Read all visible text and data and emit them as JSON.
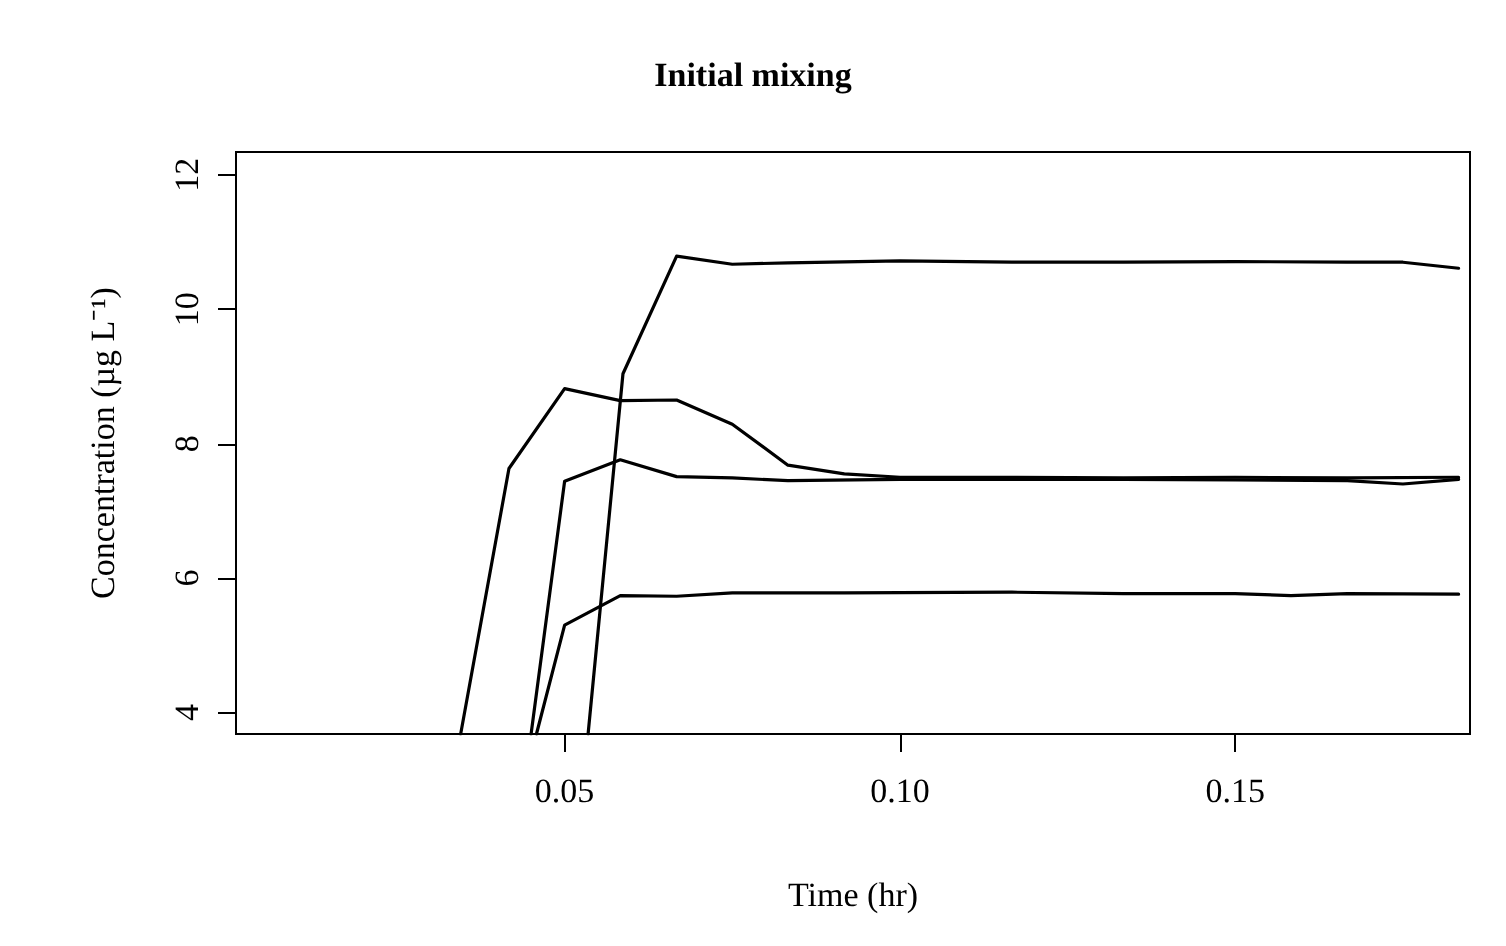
{
  "chart_data": {
    "type": "line",
    "title": "Initial mixing",
    "xlabel": "Time (hr)",
    "ylabel": "Concentration (µg L⁻¹)",
    "xlim": [
      0.001,
      0.185
    ],
    "ylim": [
      3.68,
      12.34
    ],
    "xticks": [
      {
        "value": 0.05,
        "label": "0.05"
      },
      {
        "value": 0.1,
        "label": "0.10"
      },
      {
        "value": 0.15,
        "label": "0.15"
      }
    ],
    "yticks": [
      4,
      6,
      8,
      10,
      12
    ],
    "grid": false,
    "marker": "none",
    "line_style": "solid",
    "series": [
      {
        "color": "#000000",
        "x": [
          0.0345,
          0.0417,
          0.05,
          0.0583,
          0.0667,
          0.075,
          0.0833,
          0.0917,
          0.1,
          0.1167,
          0.1333,
          0.15,
          0.1667,
          0.1833
        ],
        "values": [
          3.68,
          7.63,
          8.82,
          8.64,
          8.65,
          8.29,
          7.68,
          7.55,
          7.5,
          7.5,
          7.49,
          7.5,
          7.49,
          7.5
        ]
      },
      {
        "color": "#000000",
        "x": [
          0.045,
          0.05,
          0.0583,
          0.0667,
          0.075,
          0.0833,
          0.1,
          0.1167,
          0.1333,
          0.15,
          0.1667,
          0.175,
          0.1833
        ],
        "values": [
          3.68,
          7.44,
          7.76,
          7.51,
          7.49,
          7.45,
          7.47,
          7.47,
          7.47,
          7.46,
          7.45,
          7.4,
          7.47
        ]
      },
      {
        "color": "#000000",
        "x": [
          0.0458,
          0.05,
          0.0583,
          0.0667,
          0.075,
          0.0917,
          0.1167,
          0.1333,
          0.15,
          0.1583,
          0.1667,
          0.1833
        ],
        "values": [
          3.68,
          5.3,
          5.74,
          5.73,
          5.78,
          5.78,
          5.79,
          5.77,
          5.77,
          5.74,
          5.77,
          5.76
        ]
      },
      {
        "color": "#000000",
        "x": [
          0.0535,
          0.0587,
          0.0667,
          0.075,
          0.0833,
          0.1,
          0.1167,
          0.1333,
          0.15,
          0.1667,
          0.175,
          0.1833
        ],
        "values": [
          3.68,
          9.04,
          10.79,
          10.67,
          10.69,
          10.72,
          10.7,
          10.7,
          10.71,
          10.7,
          10.7,
          10.61
        ]
      }
    ]
  }
}
